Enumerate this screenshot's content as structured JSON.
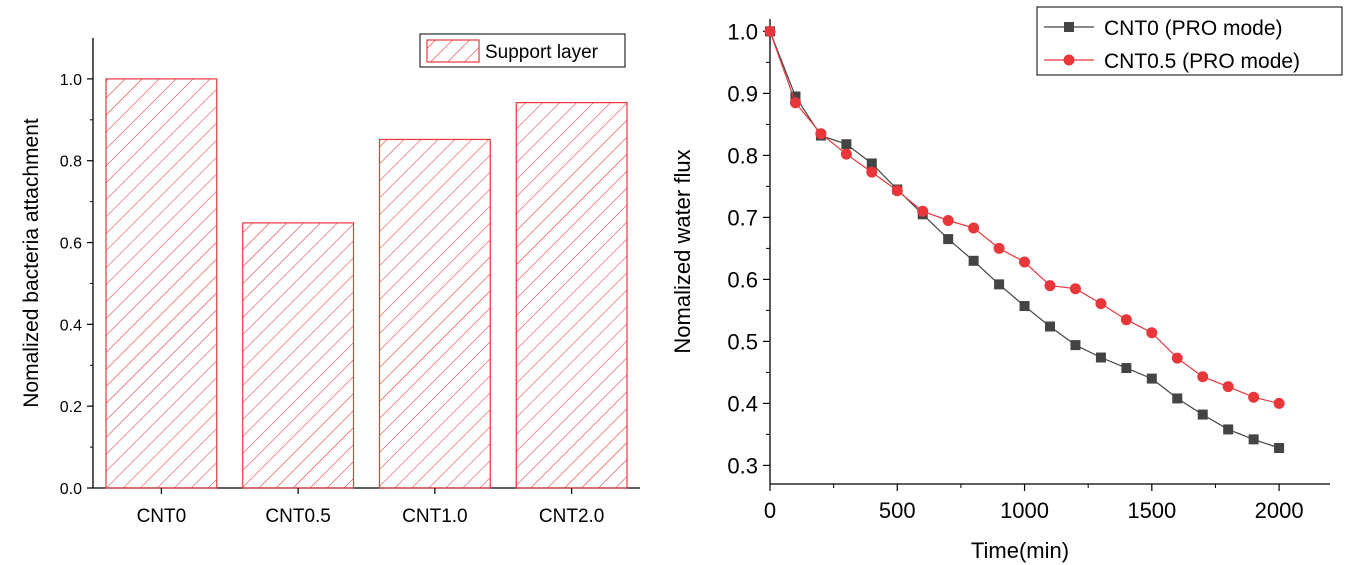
{
  "chart_data": [
    {
      "type": "bar",
      "categories": [
        "CNT0",
        "CNT0.5",
        "CNT1.0",
        "CNT2.0"
      ],
      "series": [
        {
          "name": "Support layer",
          "values": [
            1.0,
            0.648,
            0.852,
            0.942
          ]
        }
      ],
      "xlabel": "",
      "ylabel": "Nomalized bacteria attachment",
      "ylim": [
        0,
        1.1
      ],
      "yticks": [
        "0.0",
        "0.2",
        "0.4",
        "0.6",
        "0.8",
        "1.0"
      ],
      "legend_position": "top-right",
      "grid": false,
      "colors": {
        "bar": "#e8363b"
      }
    },
    {
      "type": "line",
      "x": [
        0,
        100,
        200,
        300,
        400,
        500,
        600,
        700,
        800,
        900,
        1000,
        1100,
        1200,
        1300,
        1400,
        1500,
        1600,
        1700,
        1800,
        1900,
        2000
      ],
      "series": [
        {
          "name": "CNT0 (PRO mode)",
          "marker": "square",
          "color": "#444444",
          "values": [
            1.0,
            0.895,
            0.832,
            0.818,
            0.787,
            0.745,
            0.705,
            0.665,
            0.63,
            0.592,
            0.557,
            0.524,
            0.494,
            0.474,
            0.457,
            0.44,
            0.408,
            0.382,
            0.358,
            0.342,
            0.328
          ]
        },
        {
          "name": "CNT0.5 (PRO mode)",
          "marker": "circle",
          "color": "#e8363b",
          "values": [
            1.0,
            0.885,
            0.835,
            0.802,
            0.773,
            0.743,
            0.71,
            0.695,
            0.683,
            0.65,
            0.628,
            0.59,
            0.585,
            0.561,
            0.535,
            0.514,
            0.473,
            0.443,
            0.427,
            0.41,
            0.4
          ]
        }
      ],
      "xlabel": "Time(min)",
      "ylabel": "Nomalized water flux",
      "xlim": [
        0,
        2200
      ],
      "ylim": [
        0.27,
        1.02
      ],
      "xticks": [
        "0",
        "500",
        "1000",
        "1500",
        "2000"
      ],
      "yticks": [
        "0.3",
        "0.4",
        "0.5",
        "0.6",
        "0.7",
        "0.8",
        "0.9",
        "1.0"
      ],
      "legend_position": "top-right",
      "grid": false
    }
  ]
}
